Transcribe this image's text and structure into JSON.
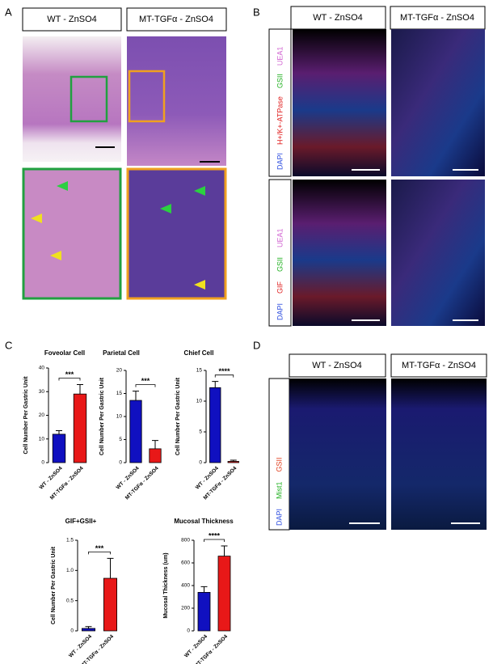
{
  "panels": {
    "a": {
      "label": "A",
      "headers": [
        "WT - ZnSO4",
        "MT-TGFα - ZnSO4"
      ]
    },
    "b": {
      "label": "B",
      "headers": [
        "WT - ZnSO4",
        "MT-TGFα - ZnSO4"
      ],
      "stains_top": [
        "DAPI",
        "H+/K+-ATPase",
        "GSII",
        "UEA1"
      ],
      "stains_bottom": [
        "DAPI",
        "GIF",
        "GSII",
        "UEA1"
      ]
    },
    "c": {
      "label": "C"
    },
    "d": {
      "label": "D",
      "headers": [
        "WT - ZnSO4",
        "MT-TGFα - ZnSO4"
      ],
      "stains": [
        "DAPI",
        "Mist1",
        "GSII"
      ]
    }
  },
  "chart_data": [
    {
      "type": "bar",
      "title": "Foveolar Cell",
      "y_label": "Cell Number Per Gastric Unit",
      "categories": [
        "WT - ZnSO4",
        "MT-TGFα - ZnSO4"
      ],
      "values": [
        12,
        29
      ],
      "errors": [
        1.5,
        4
      ],
      "colors": [
        "#1010c0",
        "#e81818"
      ],
      "ylim": [
        0,
        40
      ],
      "yticks": [
        0,
        10,
        20,
        30,
        40
      ],
      "significance": "***"
    },
    {
      "type": "bar",
      "title": "Parietal Cell",
      "y_label": "Cell Number Per Gastric Unit",
      "categories": [
        "WT - ZnSO4",
        "MT-TGFα - ZnSO4"
      ],
      "values": [
        13.5,
        3
      ],
      "errors": [
        2,
        1.8
      ],
      "colors": [
        "#1010c0",
        "#e81818"
      ],
      "ylim": [
        0,
        20
      ],
      "yticks": [
        0,
        5,
        10,
        15,
        20
      ],
      "significance": "***"
    },
    {
      "type": "bar",
      "title": "Chief Cell",
      "y_label": "Cell Number Per Gastric Unit",
      "categories": [
        "WT - ZnSO4",
        "MT-TGFα - ZnSO4"
      ],
      "values": [
        12.2,
        0.2
      ],
      "errors": [
        1,
        0.2
      ],
      "colors": [
        "#1010c0",
        "#e81818"
      ],
      "ylim": [
        0,
        15
      ],
      "yticks": [
        0,
        5,
        10,
        15
      ],
      "significance": "****"
    },
    {
      "type": "bar",
      "title": "GIF+GSII+",
      "y_label": "Cell Number Per Gastric Unit",
      "categories": [
        "WT - ZnSO4",
        "MT-TGFα - ZnSO4"
      ],
      "values": [
        0.04,
        0.87
      ],
      "errors": [
        0.03,
        0.33
      ],
      "colors": [
        "#1010c0",
        "#e81818"
      ],
      "ylim": [
        0,
        1.5
      ],
      "yticks": [
        0,
        0.5,
        {
          "value": 1,
          "label": "1.0"
        },
        1.5
      ],
      "significance": "***"
    },
    {
      "type": "bar",
      "title": "Mucosal Thickness",
      "y_label": "Mucosal Thickness (um)",
      "categories": [
        "WT - ZnSO4",
        "MT-TGFα - ZnSO4"
      ],
      "values": [
        340,
        660
      ],
      "errors": [
        50,
        90
      ],
      "colors": [
        "#1010c0",
        "#e81818"
      ],
      "ylim": [
        0,
        800
      ],
      "yticks": [
        0,
        200,
        400,
        600,
        800
      ],
      "significance": "****"
    }
  ]
}
